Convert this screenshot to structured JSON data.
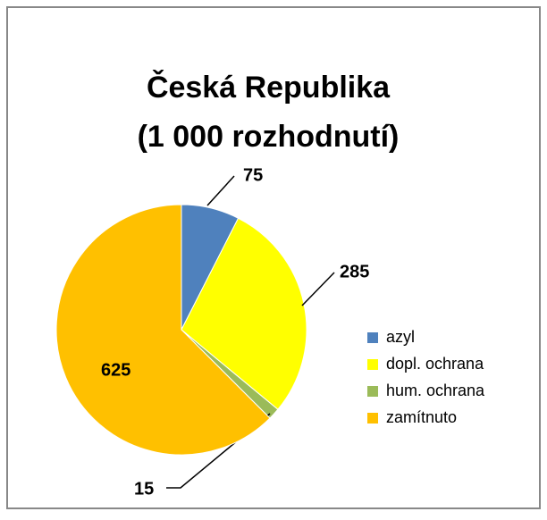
{
  "chart_data": {
    "type": "pie",
    "title": [
      "Česká Republika",
      "(1 000 rozhodnutí)"
    ],
    "categories": [
      "azyl",
      "dopl. ochrana",
      "hum. ochrana",
      "zamítnuto"
    ],
    "values": [
      75,
      285,
      15,
      625
    ],
    "colors": [
      "#4f81bd",
      "#ffff00",
      "#9bbb59",
      "#ffc000"
    ],
    "legend": "right"
  }
}
